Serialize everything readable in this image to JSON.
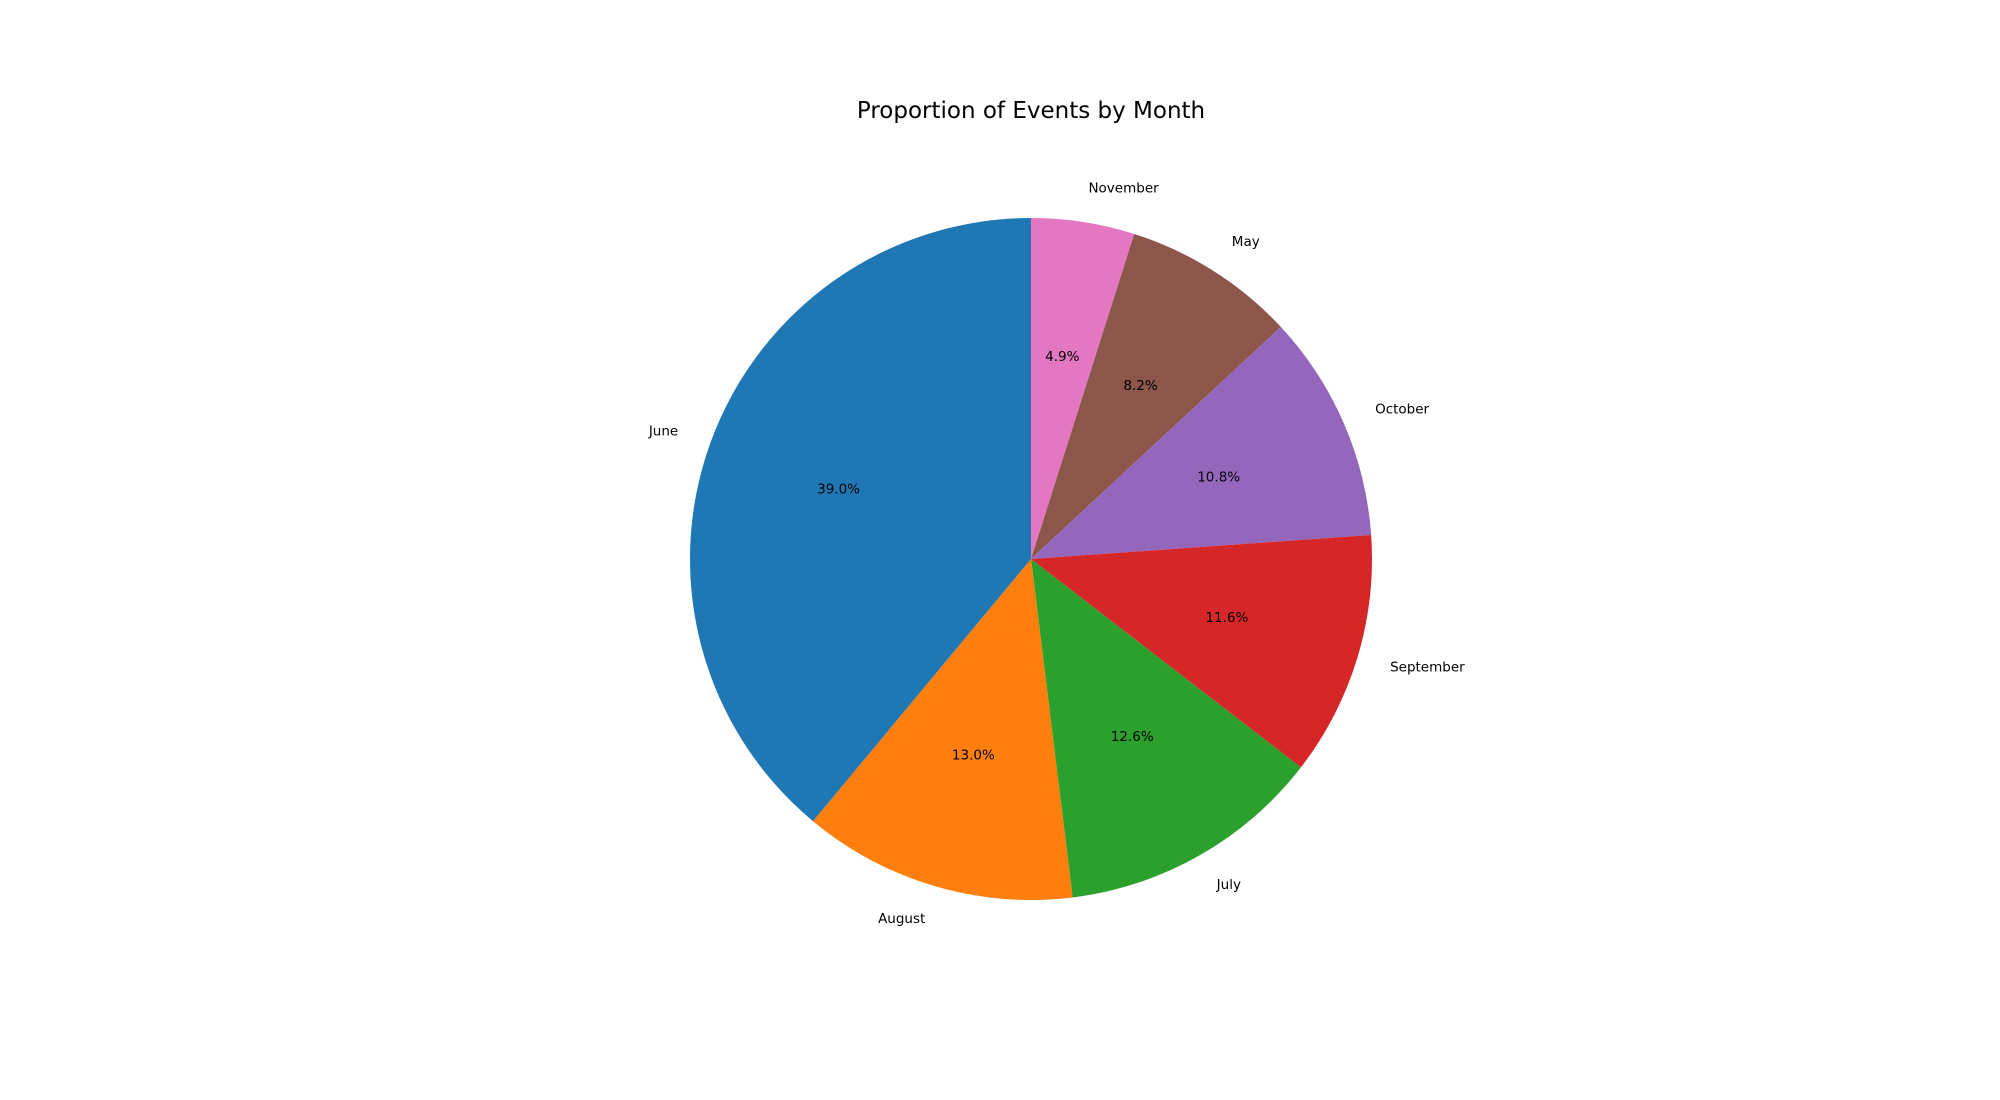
{
  "chart_data": {
    "type": "pie",
    "title": "Proportion of Events by Month",
    "categories": [
      "November",
      "May",
      "October",
      "September",
      "July",
      "August",
      "June"
    ],
    "values": [
      4.9,
      8.2,
      10.8,
      11.6,
      12.6,
      13.0,
      39.0
    ],
    "percent_labels": [
      "4.9%",
      "8.2%",
      "10.8%",
      "11.6%",
      "12.6%",
      "13.0%",
      "39.0%"
    ],
    "colors": [
      "#e377c2",
      "#8c564b",
      "#9467bd",
      "#d62728",
      "#2ca02c",
      "#ff7f0e",
      "#1f77b4"
    ],
    "start_angle_deg": 90,
    "direction": "clockwise",
    "legend": "none"
  }
}
